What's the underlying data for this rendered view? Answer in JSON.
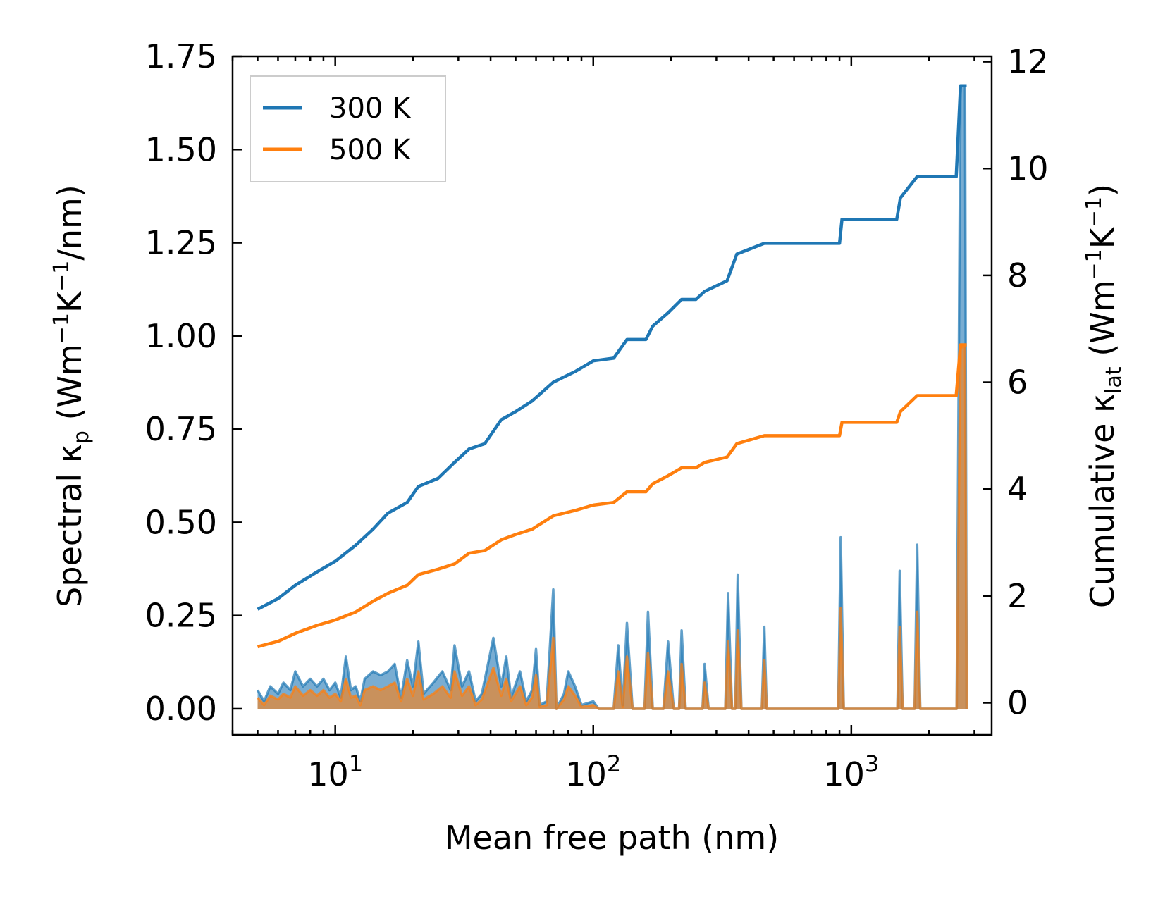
{
  "chart_data": {
    "type": "line",
    "xscale": "log",
    "xlim": [
      4.0,
      3500
    ],
    "ylim_left": [
      -0.07,
      1.75
    ],
    "ylim_right": [
      -0.6,
      12.1
    ],
    "xlabel": "Mean free path (nm)",
    "ylabel_left": "Spectral κp (Wm−1K−1/nm)",
    "ylabel_right": "Cumulative κlat (Wm−1K−1)",
    "ylabel_left_parts": {
      "a": "Spectral κ",
      "sub": "p",
      "b": " (Wm",
      "sup1": "−1",
      "c": "K",
      "sup2": "−1",
      "d": "/nm)"
    },
    "ylabel_right_parts": {
      "a": "Cumulative κ",
      "sub": "lat",
      "b": " (Wm",
      "sup1": "−1",
      "c": "K",
      "sup2": "−1",
      "d": ")"
    },
    "x_ticks": [
      {
        "value": 10,
        "base": "10",
        "exp": "1"
      },
      {
        "value": 100,
        "base": "10",
        "exp": "2"
      },
      {
        "value": 1000,
        "base": "10",
        "exp": "3"
      }
    ],
    "y_ticks_left": [
      "0.00",
      "0.25",
      "0.50",
      "0.75",
      "1.00",
      "1.25",
      "1.50",
      "1.75"
    ],
    "y_ticks_right": [
      "0",
      "2",
      "4",
      "6",
      "8",
      "10",
      "12"
    ],
    "legend": {
      "position": "top-left",
      "entries": [
        {
          "label": "300 K",
          "color": "#1f77b4"
        },
        {
          "label": "500 K",
          "color": "#ff7f0e"
        }
      ]
    },
    "series_cumulative": [
      {
        "name": "300 K",
        "color": "#1f77b4",
        "points": [
          [
            5.0,
            1.75
          ],
          [
            6.0,
            1.95
          ],
          [
            7.0,
            2.2
          ],
          [
            8.5,
            2.45
          ],
          [
            10,
            2.65
          ],
          [
            12,
            2.95
          ],
          [
            14,
            3.25
          ],
          [
            16,
            3.55
          ],
          [
            19,
            3.75
          ],
          [
            21,
            4.05
          ],
          [
            25,
            4.2
          ],
          [
            29,
            4.5
          ],
          [
            33,
            4.75
          ],
          [
            38,
            4.85
          ],
          [
            44,
            5.3
          ],
          [
            50,
            5.45
          ],
          [
            58,
            5.65
          ],
          [
            70,
            6.0
          ],
          [
            85,
            6.2
          ],
          [
            100,
            6.4
          ],
          [
            120,
            6.45
          ],
          [
            135,
            6.8
          ],
          [
            160,
            6.8
          ],
          [
            170,
            7.05
          ],
          [
            195,
            7.3
          ],
          [
            220,
            7.55
          ],
          [
            250,
            7.55
          ],
          [
            270,
            7.7
          ],
          [
            330,
            7.9
          ],
          [
            360,
            8.4
          ],
          [
            460,
            8.6
          ],
          [
            900,
            8.6
          ],
          [
            920,
            9.05
          ],
          [
            1500,
            9.05
          ],
          [
            1550,
            9.45
          ],
          [
            1800,
            9.85
          ],
          [
            2550,
            9.85
          ],
          [
            2650,
            11.55
          ],
          [
            2800,
            11.55
          ]
        ]
      },
      {
        "name": "500 K",
        "color": "#ff7f0e",
        "points": [
          [
            5.0,
            1.05
          ],
          [
            6.0,
            1.15
          ],
          [
            7.0,
            1.3
          ],
          [
            8.5,
            1.45
          ],
          [
            10,
            1.55
          ],
          [
            12,
            1.7
          ],
          [
            14,
            1.9
          ],
          [
            16,
            2.05
          ],
          [
            19,
            2.2
          ],
          [
            21,
            2.4
          ],
          [
            25,
            2.5
          ],
          [
            29,
            2.6
          ],
          [
            33,
            2.8
          ],
          [
            38,
            2.85
          ],
          [
            44,
            3.05
          ],
          [
            50,
            3.15
          ],
          [
            58,
            3.25
          ],
          [
            70,
            3.5
          ],
          [
            85,
            3.6
          ],
          [
            100,
            3.7
          ],
          [
            120,
            3.75
          ],
          [
            135,
            3.95
          ],
          [
            160,
            3.95
          ],
          [
            170,
            4.1
          ],
          [
            195,
            4.25
          ],
          [
            220,
            4.4
          ],
          [
            250,
            4.4
          ],
          [
            270,
            4.5
          ],
          [
            330,
            4.6
          ],
          [
            360,
            4.85
          ],
          [
            460,
            5.0
          ],
          [
            900,
            5.0
          ],
          [
            920,
            5.25
          ],
          [
            1500,
            5.25
          ],
          [
            1550,
            5.45
          ],
          [
            1800,
            5.75
          ],
          [
            2550,
            5.75
          ],
          [
            2650,
            6.7
          ],
          [
            2800,
            6.7
          ]
        ]
      }
    ],
    "series_spectral": [
      {
        "name": "300 K",
        "color": "#1f77b4",
        "points": [
          [
            5.0,
            0.05
          ],
          [
            5.3,
            0.02
          ],
          [
            5.6,
            0.06
          ],
          [
            6.0,
            0.04
          ],
          [
            6.3,
            0.07
          ],
          [
            6.7,
            0.05
          ],
          [
            7.0,
            0.1
          ],
          [
            7.5,
            0.06
          ],
          [
            8.0,
            0.08
          ],
          [
            8.5,
            0.06
          ],
          [
            9.0,
            0.08
          ],
          [
            9.5,
            0.05
          ],
          [
            10,
            0.07
          ],
          [
            10.5,
            0.03
          ],
          [
            11,
            0.14
          ],
          [
            11.5,
            0.05
          ],
          [
            12,
            0.06
          ],
          [
            12.5,
            0.02
          ],
          [
            13,
            0.08
          ],
          [
            14,
            0.1
          ],
          [
            15,
            0.09
          ],
          [
            16,
            0.1
          ],
          [
            17,
            0.12
          ],
          [
            18,
            0.03
          ],
          [
            19,
            0.13
          ],
          [
            20,
            0.06
          ],
          [
            21,
            0.18
          ],
          [
            22,
            0.04
          ],
          [
            24,
            0.07
          ],
          [
            26,
            0.1
          ],
          [
            28,
            0.05
          ],
          [
            29,
            0.17
          ],
          [
            31,
            0.06
          ],
          [
            33,
            0.1
          ],
          [
            35,
            0.02
          ],
          [
            37,
            0.04
          ],
          [
            41,
            0.19
          ],
          [
            44,
            0.06
          ],
          [
            46,
            0.14
          ],
          [
            48,
            0.03
          ],
          [
            52,
            0.1
          ],
          [
            55,
            0.02
          ],
          [
            58,
            0.05
          ],
          [
            60,
            0.16
          ],
          [
            62,
            0.01
          ],
          [
            66,
            0.02
          ],
          [
            70,
            0.32
          ],
          [
            72,
            0.0
          ],
          [
            77,
            0.04
          ],
          [
            80,
            0.1
          ],
          [
            85,
            0.06
          ],
          [
            90,
            0.01
          ],
          [
            100,
            0.02
          ],
          [
            105,
            0.0
          ],
          [
            120,
            0.0
          ],
          [
            125,
            0.17
          ],
          [
            130,
            0.01
          ],
          [
            135,
            0.23
          ],
          [
            142,
            0.0
          ],
          [
            158,
            0.0
          ],
          [
            163,
            0.26
          ],
          [
            170,
            0.0
          ],
          [
            187,
            0.0
          ],
          [
            195,
            0.18
          ],
          [
            205,
            0.0
          ],
          [
            215,
            0.0
          ],
          [
            220,
            0.21
          ],
          [
            228,
            0.0
          ],
          [
            265,
            0.0
          ],
          [
            270,
            0.12
          ],
          [
            280,
            0.0
          ],
          [
            325,
            0.0
          ],
          [
            333,
            0.31
          ],
          [
            345,
            0.0
          ],
          [
            355,
            0.0
          ],
          [
            363,
            0.36
          ],
          [
            375,
            0.0
          ],
          [
            450,
            0.0
          ],
          [
            460,
            0.22
          ],
          [
            470,
            0.0
          ],
          [
            890,
            0.0
          ],
          [
            910,
            0.46
          ],
          [
            935,
            0.0
          ],
          [
            1510,
            0.0
          ],
          [
            1540,
            0.37
          ],
          [
            1580,
            0.0
          ],
          [
            1760,
            0.0
          ],
          [
            1800,
            0.44
          ],
          [
            1850,
            0.0
          ],
          [
            2560,
            0.0
          ],
          [
            2650,
            1.67
          ],
          [
            2760,
            1.67
          ],
          [
            2800,
            0.0
          ]
        ]
      },
      {
        "name": "500 K",
        "color": "#ff7f0e",
        "points": [
          [
            5.0,
            0.03
          ],
          [
            5.3,
            0.01
          ],
          [
            5.6,
            0.035
          ],
          [
            6.0,
            0.025
          ],
          [
            6.3,
            0.04
          ],
          [
            6.7,
            0.03
          ],
          [
            7.0,
            0.06
          ],
          [
            7.5,
            0.035
          ],
          [
            8.0,
            0.05
          ],
          [
            8.5,
            0.035
          ],
          [
            9.0,
            0.05
          ],
          [
            9.5,
            0.03
          ],
          [
            10,
            0.04
          ],
          [
            10.5,
            0.02
          ],
          [
            11,
            0.08
          ],
          [
            11.5,
            0.03
          ],
          [
            12,
            0.035
          ],
          [
            12.5,
            0.01
          ],
          [
            13,
            0.05
          ],
          [
            14,
            0.06
          ],
          [
            15,
            0.05
          ],
          [
            16,
            0.06
          ],
          [
            17,
            0.07
          ],
          [
            18,
            0.02
          ],
          [
            19,
            0.08
          ],
          [
            20,
            0.035
          ],
          [
            21,
            0.1
          ],
          [
            22,
            0.025
          ],
          [
            24,
            0.04
          ],
          [
            26,
            0.06
          ],
          [
            28,
            0.03
          ],
          [
            29,
            0.1
          ],
          [
            31,
            0.035
          ],
          [
            33,
            0.06
          ],
          [
            35,
            0.01
          ],
          [
            37,
            0.025
          ],
          [
            41,
            0.11
          ],
          [
            44,
            0.035
          ],
          [
            46,
            0.08
          ],
          [
            48,
            0.02
          ],
          [
            52,
            0.06
          ],
          [
            55,
            0.01
          ],
          [
            58,
            0.03
          ],
          [
            60,
            0.09
          ],
          [
            62,
            0.005
          ],
          [
            66,
            0.01
          ],
          [
            70,
            0.19
          ],
          [
            72,
            0.0
          ],
          [
            77,
            0.025
          ],
          [
            80,
            0.06
          ],
          [
            85,
            0.035
          ],
          [
            90,
            0.005
          ],
          [
            100,
            0.01
          ],
          [
            105,
            0.0
          ],
          [
            120,
            0.0
          ],
          [
            125,
            0.1
          ],
          [
            130,
            0.005
          ],
          [
            135,
            0.14
          ],
          [
            142,
            0.0
          ],
          [
            158,
            0.0
          ],
          [
            163,
            0.15
          ],
          [
            170,
            0.0
          ],
          [
            187,
            0.0
          ],
          [
            195,
            0.1
          ],
          [
            205,
            0.0
          ],
          [
            215,
            0.0
          ],
          [
            220,
            0.12
          ],
          [
            228,
            0.0
          ],
          [
            265,
            0.0
          ],
          [
            270,
            0.07
          ],
          [
            280,
            0.0
          ],
          [
            325,
            0.0
          ],
          [
            333,
            0.18
          ],
          [
            345,
            0.0
          ],
          [
            355,
            0.0
          ],
          [
            363,
            0.21
          ],
          [
            375,
            0.0
          ],
          [
            450,
            0.0
          ],
          [
            460,
            0.13
          ],
          [
            470,
            0.0
          ],
          [
            890,
            0.0
          ],
          [
            910,
            0.27
          ],
          [
            935,
            0.0
          ],
          [
            1510,
            0.0
          ],
          [
            1540,
            0.22
          ],
          [
            1580,
            0.0
          ],
          [
            1760,
            0.0
          ],
          [
            1800,
            0.26
          ],
          [
            1850,
            0.0
          ],
          [
            2560,
            0.0
          ],
          [
            2650,
            0.97
          ],
          [
            2760,
            0.97
          ],
          [
            2800,
            0.0
          ]
        ]
      }
    ]
  }
}
